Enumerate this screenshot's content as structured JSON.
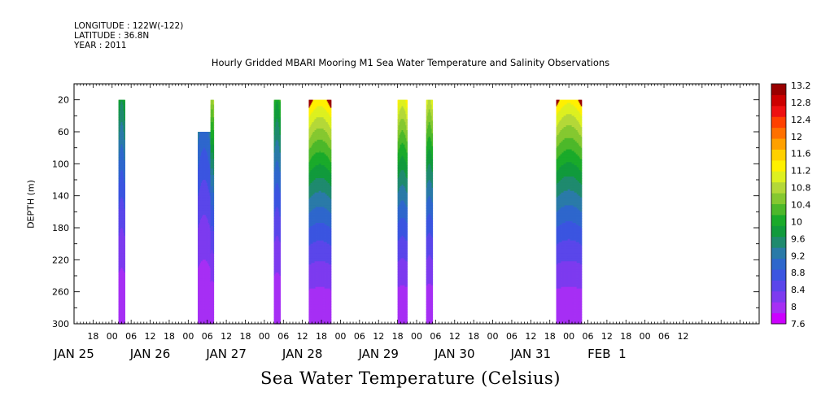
{
  "header": {
    "longitude": "LONGITUDE : 122W(-122)",
    "latitude": "LATITUDE : 36.8N",
    "year": "YEAR : 2011"
  },
  "chart_data": {
    "type": "heatmap",
    "title": "Hourly Gridded MBARI Mooring M1 Sea Water Temperature and Salinity Observations",
    "xlabel": "Sea Water Temperature (Celsius)",
    "ylabel": "DEPTH (m)",
    "x_units": "hours since JAN 25 00:00, 2011",
    "xlim": [
      12,
      228
    ],
    "ylim": [
      300,
      0
    ],
    "y_ticks": [
      20,
      60,
      100,
      140,
      180,
      220,
      260,
      300
    ],
    "x_hour_ticks": [
      "18",
      "00",
      "06",
      "12",
      "18",
      "00",
      "06",
      "12",
      "18",
      "00",
      "06",
      "12",
      "18",
      "00",
      "06",
      "12",
      "18",
      "00",
      "06",
      "12",
      "18",
      "00",
      "06",
      "12",
      "18",
      "00",
      "06",
      "12",
      "18",
      "00",
      "06",
      "12"
    ],
    "date_labels": [
      "JAN 25",
      "JAN 26",
      "JAN 27",
      "JAN 28",
      "JAN 29",
      "JAN 30",
      "JAN 31",
      "FEB  1"
    ],
    "colorbar": {
      "levels": [
        7.6,
        8,
        8.4,
        8.8,
        9.2,
        9.6,
        10,
        10.4,
        10.8,
        11.2,
        11.6,
        12,
        12.4,
        12.8,
        13.2
      ],
      "colors": [
        "#cc00ff",
        "#a62ff4",
        "#7d3bef",
        "#5a46ea",
        "#3b55e0",
        "#2e67cc",
        "#2a7aa8",
        "#1f8a6e",
        "#119a3c",
        "#1aaa2a",
        "#4db82a",
        "#85c830",
        "#b4d838",
        "#ddf020",
        "#fff000",
        "#ffd000",
        "#ffa000",
        "#ff7000",
        "#ff4000",
        "#ee1010",
        "#cc0000",
        "#990000"
      ]
    },
    "series": [
      {
        "hours": [
          26,
          28
        ],
        "top": 20,
        "tmax": 10.4
      },
      {
        "hours": [
          51,
          55
        ],
        "top": 60,
        "tmax": 9.9
      },
      {
        "hours": [
          55,
          56
        ],
        "top": 20,
        "tmax": 11.8
      },
      {
        "hours": [
          75,
          77
        ],
        "top": 20,
        "tmax": 10.8
      },
      {
        "hours": [
          86,
          93
        ],
        "top": 20,
        "tmax": 13.0
      },
      {
        "hours": [
          114,
          117
        ],
        "top": 20,
        "tmax": 12.6
      },
      {
        "hours": [
          123,
          125
        ],
        "top": 20,
        "tmax": 12.3
      },
      {
        "hours": [
          164,
          172
        ],
        "top": 20,
        "tmax": 12.9
      }
    ]
  }
}
